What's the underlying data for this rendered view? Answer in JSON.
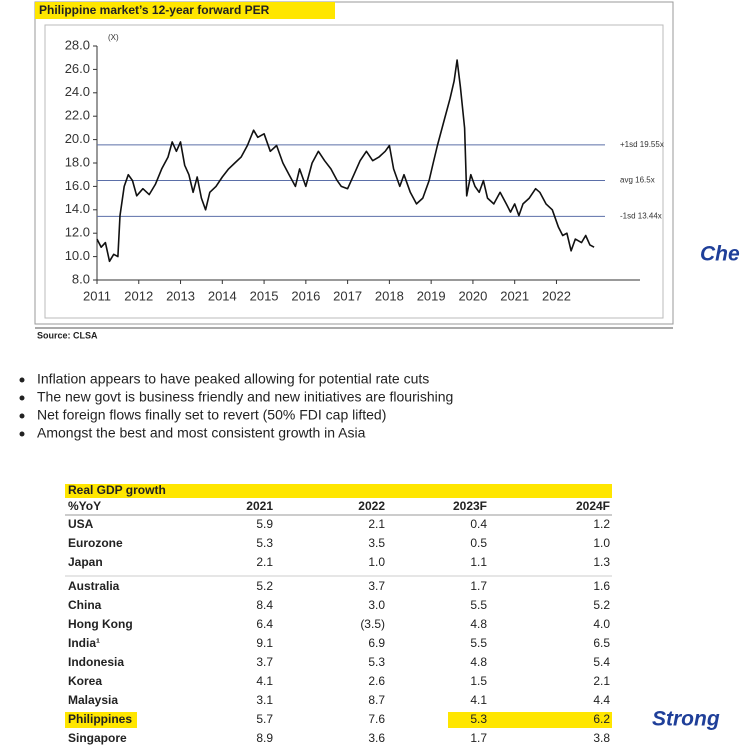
{
  "chart_data": {
    "type": "line",
    "title": "Philippine market’s 12-year forward PER",
    "y_unit": "(X)",
    "source": "Source: CLSA",
    "color": "#111111",
    "x": [
      2011.0,
      2011.1,
      2011.2,
      2011.3,
      2011.4,
      2011.5,
      2011.55,
      2011.65,
      2011.75,
      2011.85,
      2011.95,
      2012.1,
      2012.25,
      2012.4,
      2012.55,
      2012.7,
      2012.8,
      2012.9,
      2013.0,
      2013.1,
      2013.2,
      2013.3,
      2013.4,
      2013.5,
      2013.6,
      2013.7,
      2013.85,
      2014.0,
      2014.15,
      2014.3,
      2014.45,
      2014.6,
      2014.75,
      2014.85,
      2015.0,
      2015.15,
      2015.3,
      2015.45,
      2015.6,
      2015.75,
      2015.85,
      2016.0,
      2016.15,
      2016.3,
      2016.45,
      2016.6,
      2016.75,
      2016.85,
      2017.0,
      2017.15,
      2017.3,
      2017.45,
      2017.6,
      2017.75,
      2017.9,
      2018.0,
      2018.1,
      2018.25,
      2018.35,
      2018.5,
      2018.65,
      2018.8,
      2018.95,
      2019.05,
      2019.15,
      2019.3,
      2019.45,
      2019.55,
      2019.62,
      2019.7,
      2019.8,
      2019.85,
      2019.95,
      2020.05,
      2020.15,
      2020.25,
      2020.35,
      2020.5,
      2020.65,
      2020.8,
      2020.9,
      2021.0,
      2021.1,
      2021.2,
      2021.35,
      2021.5,
      2021.6,
      2021.75,
      2021.9,
      2022.05,
      2022.15,
      2022.25,
      2022.35,
      2022.45,
      2022.6,
      2022.7,
      2022.8,
      2022.9
    ],
    "values": [
      11.5,
      10.8,
      11.2,
      9.6,
      10.2,
      10.0,
      13.5,
      16.0,
      17.0,
      16.5,
      15.2,
      15.8,
      15.3,
      16.2,
      17.5,
      18.5,
      19.8,
      19.0,
      19.8,
      17.8,
      17.0,
      15.5,
      16.8,
      15.0,
      14.0,
      15.5,
      16.0,
      16.8,
      17.5,
      18.0,
      18.5,
      19.5,
      20.8,
      20.2,
      20.5,
      19.0,
      19.5,
      18.0,
      17.0,
      16.0,
      17.5,
      16.0,
      18.0,
      19.0,
      18.2,
      17.5,
      16.5,
      16.0,
      15.8,
      17.0,
      18.2,
      19.0,
      18.2,
      18.5,
      19.0,
      19.5,
      17.5,
      16.0,
      17.0,
      15.5,
      14.5,
      15.0,
      16.5,
      18.0,
      19.5,
      21.5,
      23.5,
      25.0,
      26.8,
      24.5,
      21.0,
      15.2,
      17.0,
      16.0,
      15.5,
      16.5,
      15.0,
      14.5,
      15.5,
      14.5,
      13.8,
      14.5,
      13.5,
      14.5,
      15.0,
      15.8,
      15.5,
      14.5,
      14.0,
      12.5,
      11.8,
      12.0,
      10.5,
      11.5,
      11.2,
      11.8,
      11.0,
      10.8
    ],
    "xlim": [
      2011,
      2024
    ],
    "xticks": [
      2011,
      2012,
      2013,
      2014,
      2015,
      2016,
      2017,
      2018,
      2019,
      2020,
      2021,
      2022
    ],
    "ylim": [
      8,
      28
    ],
    "yticks": [
      {
        "value": 8,
        "label": "8.0"
      },
      {
        "value": 10,
        "label": "10.0"
      },
      {
        "value": 12,
        "label": "12.0"
      },
      {
        "value": 14,
        "label": "14.0"
      },
      {
        "value": 16,
        "label": "16.0"
      },
      {
        "value": 18,
        "label": "18.0"
      },
      {
        "value": 20,
        "label": "20.0"
      },
      {
        "value": 22,
        "label": "22.0"
      },
      {
        "value": 24,
        "label": "24.0"
      },
      {
        "value": 26,
        "label": "26.0"
      },
      {
        "value": 28,
        "label": "28.0"
      }
    ],
    "reference_lines": [
      {
        "value": 19.55,
        "label": "+1sd 19.55x"
      },
      {
        "value": 16.5,
        "label": "avg 16.5x"
      },
      {
        "value": 13.44,
        "label": "-1sd 13.44x"
      }
    ],
    "reference_color": "#5b6fa8"
  },
  "bullets": [
    "Inflation appears to have peaked allowing for potential rate cuts",
    "The new govt is business friendly and new initiatives are flourishing",
    "Net foreign flows finally set to revert (50% FDI cap lifted)",
    "Amongst the best and most consistent growth in Asia"
  ],
  "table": {
    "title": "Real GDP growth",
    "header": [
      "%YoY",
      "2021",
      "2022",
      "2023F",
      "2024F"
    ],
    "rows": [
      [
        "USA",
        "5.9",
        "2.1",
        "0.4",
        "1.2"
      ],
      [
        "Eurozone",
        "5.3",
        "3.5",
        "0.5",
        "1.0"
      ],
      [
        "Japan",
        "2.1",
        "1.0",
        "1.1",
        "1.3"
      ],
      [
        "Australia",
        "5.2",
        "3.7",
        "1.7",
        "1.6"
      ],
      [
        "China",
        "8.4",
        "3.0",
        "5.5",
        "5.2"
      ],
      [
        "Hong Kong",
        "6.4",
        "(3.5)",
        "4.8",
        "4.0"
      ],
      [
        "India¹",
        "9.1",
        "6.9",
        "5.5",
        "6.5"
      ],
      [
        "Indonesia",
        "3.7",
        "5.3",
        "4.8",
        "5.4"
      ],
      [
        "Korea",
        "4.1",
        "2.6",
        "1.5",
        "2.1"
      ],
      [
        "Malaysia",
        "3.1",
        "8.7",
        "4.1",
        "4.4"
      ],
      [
        "Philippines",
        "5.7",
        "7.6",
        "5.3",
        "6.2"
      ],
      [
        "Singapore",
        "8.9",
        "3.6",
        "1.7",
        "3.8"
      ]
    ]
  },
  "side_text": [
    "Che",
    "Strong"
  ]
}
